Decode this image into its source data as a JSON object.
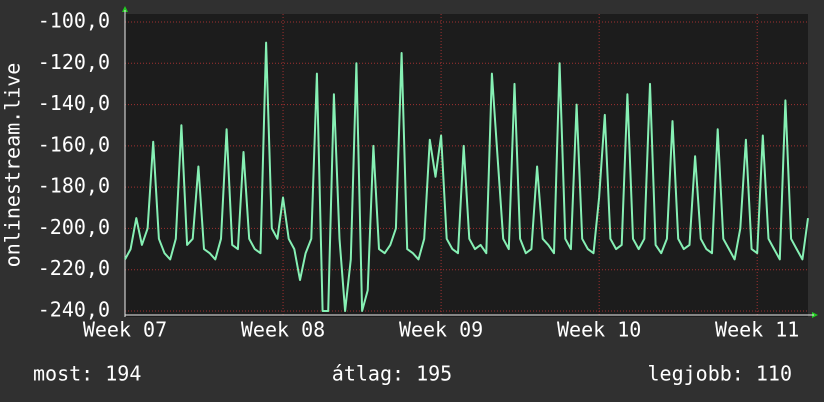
{
  "chart_data": {
    "type": "line",
    "y_label": "onlinestream.live",
    "ylim": [
      -240,
      -100
    ],
    "yticks": [
      {
        "value": -100,
        "label": "-100,0"
      },
      {
        "value": -120,
        "label": "-120,0"
      },
      {
        "value": -140,
        "label": "-140,0"
      },
      {
        "value": -160,
        "label": "-160,0"
      },
      {
        "value": -180,
        "label": "-180,0"
      },
      {
        "value": -200,
        "label": "-200,0"
      },
      {
        "value": -220,
        "label": "-220,0"
      },
      {
        "value": -240,
        "label": "-240,0"
      }
    ],
    "xlim": [
      0,
      121
    ],
    "xticks": [
      {
        "value": 0,
        "label": "Week 07"
      },
      {
        "value": 28,
        "label": "Week 08"
      },
      {
        "value": 56,
        "label": "Week 09"
      },
      {
        "value": 84,
        "label": "Week 10"
      },
      {
        "value": 112,
        "label": "Week 11"
      }
    ],
    "grid": true,
    "color": "#86f0b4",
    "values": [
      -215,
      -210,
      -195,
      -208,
      -200,
      -158,
      -205,
      -212,
      -215,
      -205,
      -150,
      -208,
      -205,
      -170,
      -210,
      -212,
      -215,
      -205,
      -152,
      -208,
      -210,
      -163,
      -205,
      -210,
      -212,
      -110,
      -200,
      -205,
      -185,
      -205,
      -210,
      -225,
      -212,
      -205,
      -125,
      -240,
      -240,
      -135,
      -205,
      -240,
      -215,
      -120,
      -240,
      -230,
      -160,
      -210,
      -212,
      -208,
      -200,
      -115,
      -210,
      -212,
      -215,
      -205,
      -157,
      -175,
      -155,
      -205,
      -210,
      -212,
      -160,
      -205,
      -210,
      -208,
      -212,
      -125,
      -165,
      -205,
      -210,
      -130,
      -205,
      -212,
      -210,
      -170,
      -205,
      -208,
      -212,
      -120,
      -205,
      -210,
      -140,
      -205,
      -210,
      -212,
      -185,
      -145,
      -205,
      -210,
      -208,
      -135,
      -205,
      -210,
      -205,
      -130,
      -208,
      -212,
      -205,
      -148,
      -205,
      -210,
      -208,
      -165,
      -205,
      -210,
      -212,
      -152,
      -205,
      -210,
      -215,
      -200,
      -157,
      -210,
      -212,
      -155,
      -205,
      -210,
      -215,
      -138,
      -205,
      -210,
      -215,
      -195
    ],
    "footer": [
      "most: 194",
      "átlag: 195",
      "legjobb: 110"
    ]
  }
}
